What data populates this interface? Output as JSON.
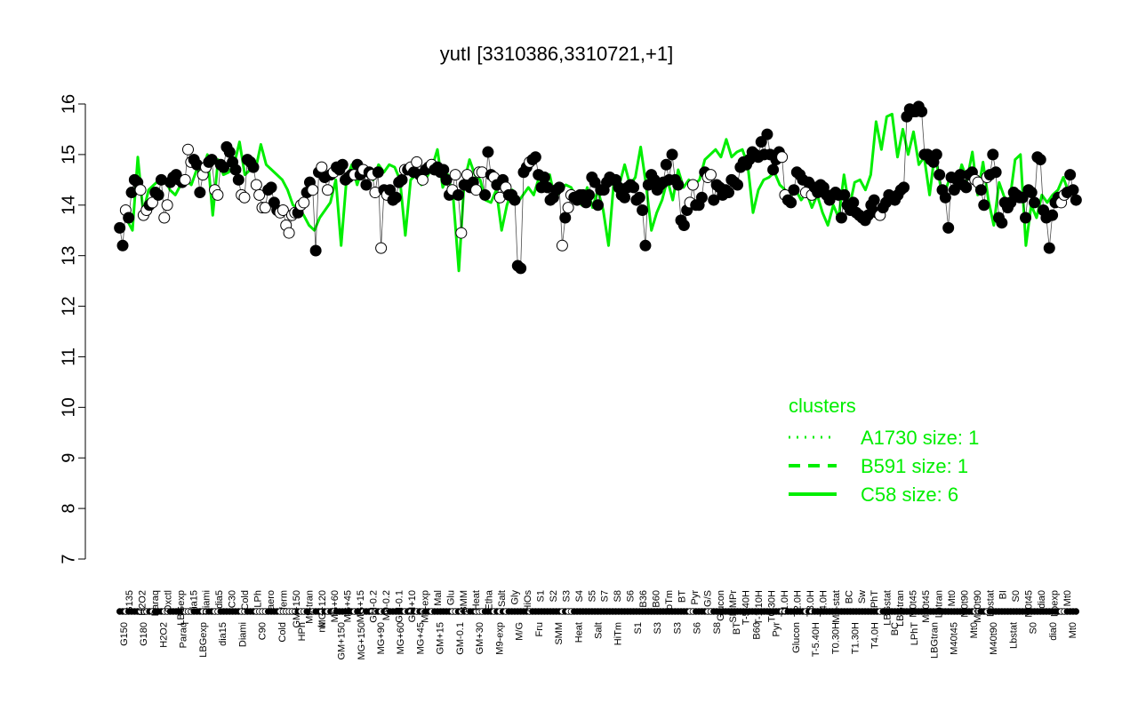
{
  "chart_data": {
    "type": "line",
    "title": "yutI [3310386,3310721,+1]",
    "xlabel": "",
    "ylabel": "",
    "ylim": [
      7,
      16
    ],
    "yticks": [
      7,
      8,
      9,
      10,
      11,
      12,
      13,
      14,
      15,
      16
    ],
    "legend": {
      "title": "clusters",
      "placement": "right",
      "entries": [
        {
          "label": "A1730 size: 1",
          "style": "dotted"
        },
        {
          "label": "B591 size: 1",
          "style": "dashed"
        },
        {
          "label": "C58 size: 6",
          "style": "solid"
        }
      ]
    },
    "x_tick_labels_top": [
      "G135",
      "H2O2",
      "Paraq",
      "Oxctl",
      "LBGexp",
      "dia15",
      "Diami",
      "dia5",
      "C30",
      "Cold",
      "LPh",
      "aero",
      "ferm",
      "GM+150",
      "M9-tran",
      "MG+120",
      "MG+60",
      "MG+45",
      "MG+15",
      "GM-0.2",
      "M9-0.2",
      "GM-0.1",
      "GM+10",
      "M9-exp",
      "Mal",
      "Glu",
      "BMM",
      "Heat",
      "Etha",
      "Salt",
      "Gly",
      "HiOs",
      "S1",
      "S2",
      "S3",
      "S4",
      "S5",
      "S7",
      "S8",
      "S6",
      "B36",
      "B60",
      "LoTm",
      "BT",
      "Pyr",
      "G/S",
      "Glucon",
      "SMMPr",
      "T-5.40H",
      "T-1.10H",
      "T0.30H",
      "T1.0H",
      "T2.0H",
      "T3.0H",
      "T4.0H",
      "M9-stat",
      "BC",
      "Sw",
      "LPhT",
      "LBGstat",
      "LBGtran",
      "M0t45",
      "M40t45",
      "Lbtran",
      "Mt0",
      "M0t90",
      "M40t90",
      "Lbstat",
      "BI",
      "S0",
      "M0t45",
      "dia0",
      "Lbexp",
      "Mt0"
    ],
    "x_tick_labels_bottom": [
      "G150",
      "G180",
      "H2O2",
      "Paraq",
      "LBGexp",
      "dia15",
      "Diami",
      "C90",
      "Cold",
      "HPh",
      "nit",
      "GM+150",
      "MG+150",
      "MG+90",
      "MG+60",
      "MG+45",
      "GM+15",
      "GM-0.1",
      "GM+30",
      "M9-exp",
      "M/G",
      "Fru",
      "SMM",
      "Heat",
      "Salt",
      "HiTm",
      "S1",
      "S3",
      "S3",
      "S6",
      "S8",
      "BT",
      "B60",
      "Pyr",
      "Glucon",
      "T-5.40H",
      "T0.30H",
      "T1.30H",
      "T4.0H",
      "BC",
      "LPhT",
      "LBGtran",
      "M40t45",
      "Mt0",
      "M40t90",
      "Lbstat",
      "S0",
      "dia0",
      "Mt0"
    ],
    "series": [
      {
        "values": [
          13.55,
          13.2,
          13.9,
          13.75,
          14.25,
          14.5,
          14.45,
          14.3,
          13.8,
          13.9,
          14,
          14.05,
          14.25,
          14.2,
          14.5,
          13.75,
          14,
          14.45,
          14.55,
          14.6,
          14.5,
          14.45,
          14.5,
          15.1,
          14.85,
          14.9,
          14.8,
          14.25,
          14.6,
          14.75,
          14.85,
          14.9,
          14.3,
          14.2,
          14.8,
          14.75,
          15.15,
          15.05,
          14.85,
          14.7,
          14.5,
          14.2,
          14.15,
          14.9,
          14.85,
          14.75,
          14.4,
          14.2,
          13.95,
          13.95,
          14.3,
          14.35,
          14.05,
          13.9,
          13.85,
          13.9,
          13.6,
          13.45,
          13.8,
          13.85,
          13.85,
          14,
          14.05,
          14.25,
          14.45,
          14.3,
          13.1,
          14.65,
          14.75,
          14.55,
          14.3,
          14.6,
          14.65,
          14.75,
          14.7,
          14.8,
          14.5,
          14.55,
          14.6,
          14.6,
          14.8,
          14.6,
          14.7,
          14.4,
          14.65,
          14.6,
          14.25,
          14.65,
          13.15,
          14.3,
          14.2,
          14.3,
          14.1,
          14.15,
          14.45,
          14.5,
          14.7,
          14.7,
          14.75,
          14.65,
          14.85,
          14.6,
          14.5,
          14.7,
          14.75,
          14.8,
          14.7,
          14.75,
          14.65,
          14.7,
          14.5,
          14.2,
          14.3,
          14.6,
          14.2,
          13.45,
          14.4,
          14.6,
          14.35,
          14.45,
          14.3,
          14.65,
          14.65,
          14.2,
          15.05,
          14.6,
          14.55,
          14.4,
          14.15,
          14.5,
          14.35,
          14.2,
          14.2,
          14.1,
          12.8,
          12.75,
          14.65,
          14.75,
          14.85,
          14.9,
          14.95,
          14.6,
          14.35,
          14.55,
          14.35,
          14.1,
          14.15,
          14.3,
          14.35,
          13.2,
          13.75,
          13.95,
          14.2,
          14.15,
          14.1,
          14.2,
          14.2,
          14.05,
          14.2,
          14.55,
          14.45,
          14,
          14.3,
          14.3,
          14.45,
          14.55,
          14.5,
          14.5,
          14.35,
          14.2,
          14.15,
          14.35,
          14.4,
          14.35,
          14.1,
          14.15,
          13.9,
          13.2,
          14.4,
          14.6,
          14.5,
          14.3,
          14.4,
          14.45,
          14.8,
          14.5,
          15,
          14.5,
          14.4,
          13.7,
          13.6,
          13.9,
          14.05,
          14.4,
          14,
          14,
          14.15,
          14.65,
          14.55,
          14.6,
          14.1,
          14.4,
          14.35,
          14.2,
          14.3,
          14.25,
          14.5,
          14.45,
          14.4,
          14.75,
          14.85,
          14.8,
          14.9,
          15.05,
          15,
          14.95,
          15.25,
          15,
          15.4,
          15,
          14.7,
          14.9,
          15.05,
          14.95,
          14.2,
          14.1,
          14.05,
          14.3,
          14.65,
          14.6,
          14.5,
          14.25,
          14.45,
          14.2,
          14.35,
          14.25,
          14.4,
          14.35,
          14.2,
          14.1,
          14.2,
          14.25,
          14.2,
          13.75,
          14.2,
          14,
          13.9,
          14.05,
          13.85,
          13.8,
          13.75,
          13.7,
          13.8,
          14,
          14.1,
          13.85,
          13.8,
          13.95,
          14.05,
          14.2,
          14.15,
          14.1,
          14.2,
          14.3,
          14.35,
          15.75,
          15.9,
          15.85,
          15.85,
          15.95,
          15.85,
          15,
          15,
          14.9,
          14.85,
          15,
          14.6,
          14.3,
          14.15,
          13.55,
          14.55,
          14.3,
          14.5,
          14.6,
          14.4,
          14.35,
          14.6,
          14.65,
          14.5,
          14.45,
          14.3,
          14,
          14.55,
          14.6,
          15,
          14.65,
          13.75,
          13.65,
          14.05,
          13.95,
          14.05,
          14.25,
          14.2,
          14.15,
          14.15,
          13.75,
          14.3,
          14.25,
          14.05,
          14.95,
          14.9,
          13.9,
          13.75,
          13.15,
          13.8,
          14.05,
          14.15,
          14.05,
          14.2,
          14.25,
          14.6,
          14.3,
          14.1
        ],
        "marker_fill": [
          "black",
          "black",
          "white",
          "black",
          "black",
          "black",
          "black",
          "white",
          "white",
          "white",
          "black",
          "white",
          "black",
          "black",
          "black",
          "white",
          "white",
          "black",
          "black",
          "black",
          "black",
          "black",
          "white",
          "white",
          "white",
          "black",
          "black",
          "black",
          "white",
          "white",
          "black",
          "black",
          "white",
          "white",
          "black",
          "black",
          "black",
          "black",
          "black",
          "black",
          "black",
          "white",
          "white",
          "black",
          "black",
          "black",
          "white",
          "white",
          "white",
          "white",
          "black",
          "black",
          "black",
          "black",
          "white",
          "white",
          "white",
          "white",
          "white",
          "white",
          "black",
          "white",
          "white",
          "black",
          "black",
          "white",
          "black",
          "black",
          "white",
          "black",
          "white",
          "black",
          "white",
          "black",
          "black",
          "black",
          "black",
          "black",
          "black",
          "white",
          "black",
          "black",
          "white",
          "black",
          "black",
          "white",
          "white",
          "black",
          "white",
          "black",
          "white",
          "black",
          "black",
          "black",
          "black",
          "black",
          "white",
          "black",
          "white",
          "black",
          "white",
          "black",
          "white",
          "black",
          "black",
          "white",
          "black",
          "black",
          "black",
          "black",
          "black",
          "black",
          "white",
          "white",
          "black",
          "white",
          "black",
          "white",
          "black",
          "black",
          "white",
          "white",
          "white",
          "black",
          "black",
          "black",
          "white",
          "black",
          "white",
          "black",
          "white",
          "black",
          "black",
          "black",
          "black",
          "black",
          "black",
          "black",
          "white",
          "black",
          "black",
          "black",
          "black",
          "black",
          "black",
          "black",
          "black",
          "black",
          "black",
          "white",
          "black",
          "white",
          "white",
          "black",
          "black",
          "black",
          "black",
          "black",
          "black",
          "black",
          "black",
          "black",
          "black",
          "black",
          "black",
          "black",
          "black",
          "black",
          "black",
          "black",
          "black",
          "black",
          "black",
          "black",
          "black",
          "black",
          "black",
          "black",
          "black",
          "black",
          "black",
          "black",
          "black",
          "black",
          "black",
          "black",
          "black",
          "black",
          "black",
          "black",
          "black",
          "black",
          "white",
          "white",
          "black",
          "black",
          "black",
          "black",
          "white",
          "white",
          "black",
          "black",
          "black",
          "black",
          "black",
          "black",
          "black",
          "black",
          "black",
          "black",
          "black",
          "black",
          "black",
          "black",
          "black",
          "black",
          "black",
          "black",
          "black",
          "black",
          "black",
          "black",
          "black",
          "white",
          "white",
          "black",
          "black",
          "black",
          "black",
          "black",
          "black",
          "white",
          "black",
          "white",
          "black",
          "black",
          "black",
          "black",
          "black",
          "black",
          "black",
          "black",
          "black",
          "black",
          "black",
          "black",
          "black",
          "black",
          "black",
          "black",
          "black",
          "black",
          "black",
          "black",
          "black",
          "black",
          "white",
          "black",
          "black",
          "black",
          "black",
          "black",
          "black",
          "black",
          "black",
          "black",
          "black",
          "black",
          "black",
          "black",
          "black",
          "black",
          "black",
          "black",
          "black",
          "black",
          "black",
          "black",
          "black",
          "black",
          "black",
          "black",
          "black",
          "black",
          "black",
          "black",
          "black",
          "black",
          "white",
          "white",
          "black",
          "black",
          "white",
          "black",
          "black",
          "black",
          "black",
          "black",
          "black",
          "black",
          "black",
          "black",
          "black",
          "black",
          "black",
          "black",
          "black",
          "black",
          "black",
          "black",
          "black",
          "black",
          "black",
          "black",
          "black",
          "black",
          "black",
          "white",
          "white",
          "black",
          "black",
          "black",
          "black",
          "black",
          "black",
          "black",
          "black",
          "black",
          "black",
          "black",
          "black"
        ]
      }
    ],
    "cluster_line": [
      13.7,
      13.5,
      14.95,
      13.85,
      14.3,
      14.4,
      14.5,
      14.55,
      14.3,
      14.2,
      14.4,
      14.5,
      14.4,
      14.7,
      14.65,
      15.0,
      13.8,
      14.9,
      14.6,
      14.65,
      14.8,
      15.25,
      14.6,
      14.7,
      14.7,
      15.2,
      14.8,
      14.7,
      14.6,
      14.5,
      14.3,
      14.0,
      13.95,
      13.8,
      13.6,
      13.5,
      13.75,
      13.9,
      14.05,
      14.5,
      13.2,
      14.5,
      14.8,
      14.4,
      14.75,
      14.6,
      14.5,
      14.8,
      14.65,
      14.8,
      14.75,
      14.5,
      13.4,
      14.5,
      14.6,
      14.4,
      14.55,
      14.75,
      15.1,
      14.35,
      14.6,
      14.1,
      12.7,
      14.45,
      14.9,
      14.6,
      14.5,
      14.1,
      14.05,
      14.3,
      13.5,
      14.0,
      14.3,
      14.05,
      14.2,
      14.35,
      14.2,
      14.55,
      14.3,
      14.6,
      14.1,
      14.3,
      14.4,
      14.35,
      14.15,
      14.0,
      14.35,
      13.95,
      14.3,
      13.9,
      13.2,
      14.5,
      14.4,
      14.8,
      14.4,
      14.55,
      15.15,
      14.4,
      13.5,
      13.85,
      14.1,
      14.5,
      14.1,
      14.7,
      14.35,
      14.5,
      14.4,
      14.5,
      14.9,
      15.0,
      15.1,
      14.95,
      15.3,
      14.95,
      15.05,
      15.1,
      14.8,
      13.85,
      14.3,
      14.5,
      14.55,
      14.65,
      14.4,
      14.3,
      14.2,
      14.3,
      14.1,
      14.25,
      13.95,
      14.2,
      13.85,
      13.6,
      14.0,
      13.75,
      14.6,
      13.95,
      14.45,
      14.5,
      14.3,
      14.6,
      15.65,
      15.1,
      15.75,
      15.8,
      14.95,
      15.5,
      15.0,
      15.45,
      14.8,
      14.95,
      14.2,
      15.05,
      14.4,
      14.3,
      14.6,
      14.35,
      14.8,
      14.5,
      15.05,
      14.2,
      14.85,
      14.1,
      13.6,
      14.45,
      14.15,
      14.1,
      14.9,
      15.0,
      13.2,
      14.0,
      13.75,
      14.2,
      14.05,
      14.2,
      14.3,
      14.55,
      14.25
    ]
  }
}
